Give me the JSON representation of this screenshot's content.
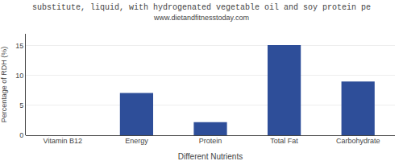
{
  "chart_data": {
    "type": "bar",
    "title": "substitute, liquid, with hydrogenated vegetable oil and soy protein pe",
    "subtitle": "www.dietandfitnesstoday.com",
    "xlabel": "Different Nutrients",
    "ylabel": "Percentage of RDH (%)",
    "categories": [
      "Vitamin B12",
      "Energy",
      "Protein",
      "Total Fat",
      "Carbohydrate"
    ],
    "values": [
      0,
      7.1,
      2.2,
      15.1,
      9.0
    ],
    "color": "#2e4e99",
    "ylim": [
      0,
      17
    ],
    "yticks": [
      0,
      5,
      10,
      15
    ],
    "grid": true
  }
}
